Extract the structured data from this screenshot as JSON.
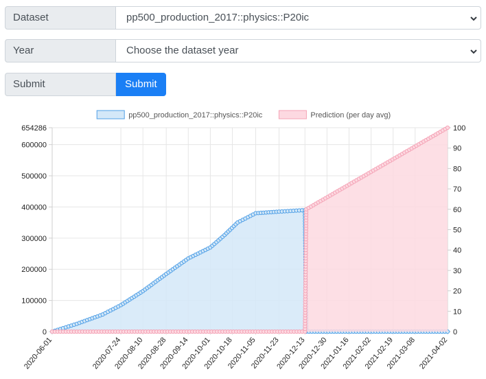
{
  "form": {
    "dataset_label": "Dataset",
    "dataset_value": "pp500_production_2017::physics::P20ic",
    "year_label": "Year",
    "year_value": "Choose the dataset year",
    "submit_label": "Submit",
    "submit_button": "Submit"
  },
  "colors": {
    "series_line": "#4f9fe6",
    "series_fill": "#d4e8f8",
    "prediction_line": "#f4a3b6",
    "prediction_fill": "#fdd9e1",
    "submit_button": "#1a7ff5"
  },
  "chart_data": {
    "type": "line",
    "legend": [
      "pp500_production_2017::physics::P20ic",
      "Prediction (per day avg)"
    ],
    "legend_position": "top",
    "grid": true,
    "y_left_ticks": [
      "0",
      "100000",
      "200000",
      "300000",
      "400000",
      "500000",
      "600000",
      "654286"
    ],
    "y_left_range": [
      0,
      654286
    ],
    "y_right_ticks": [
      "0",
      "10",
      "20",
      "30",
      "40",
      "50",
      "60",
      "70",
      "80",
      "90",
      "100"
    ],
    "y_right_range": [
      0,
      100
    ],
    "x_tick_labels": [
      "2020-06-01",
      "2020-07-24",
      "2020-08-10",
      "2020-08-28",
      "2020-09-14",
      "2020-10-01",
      "2020-10-18",
      "2020-11-05",
      "2020-11-23",
      "2020-12-13",
      "2020-12-30",
      "2021-01-16",
      "2021-02-02",
      "2021-02-19",
      "2021-03-08",
      "2021-04-02"
    ],
    "series": [
      {
        "name": "pp500_production_2017::physics::P20ic",
        "axis": "left",
        "x": [
          "2020-06-01",
          "2020-06-20",
          "2020-07-10",
          "2020-07-24",
          "2020-08-10",
          "2020-08-28",
          "2020-09-14",
          "2020-10-01",
          "2020-10-12",
          "2020-10-22",
          "2020-11-05",
          "2020-11-23",
          "2020-12-13",
          "2020-12-14",
          "2021-04-02"
        ],
        "values": [
          0,
          25000,
          55000,
          85000,
          130000,
          185000,
          235000,
          270000,
          310000,
          350000,
          380000,
          385000,
          390000,
          0,
          0
        ]
      },
      {
        "name": "Prediction (per day avg)",
        "axis": "right",
        "x": [
          "2020-06-01",
          "2020-12-13",
          "2020-12-14",
          "2021-04-02"
        ],
        "values": [
          0,
          0,
          60,
          100
        ]
      }
    ]
  }
}
